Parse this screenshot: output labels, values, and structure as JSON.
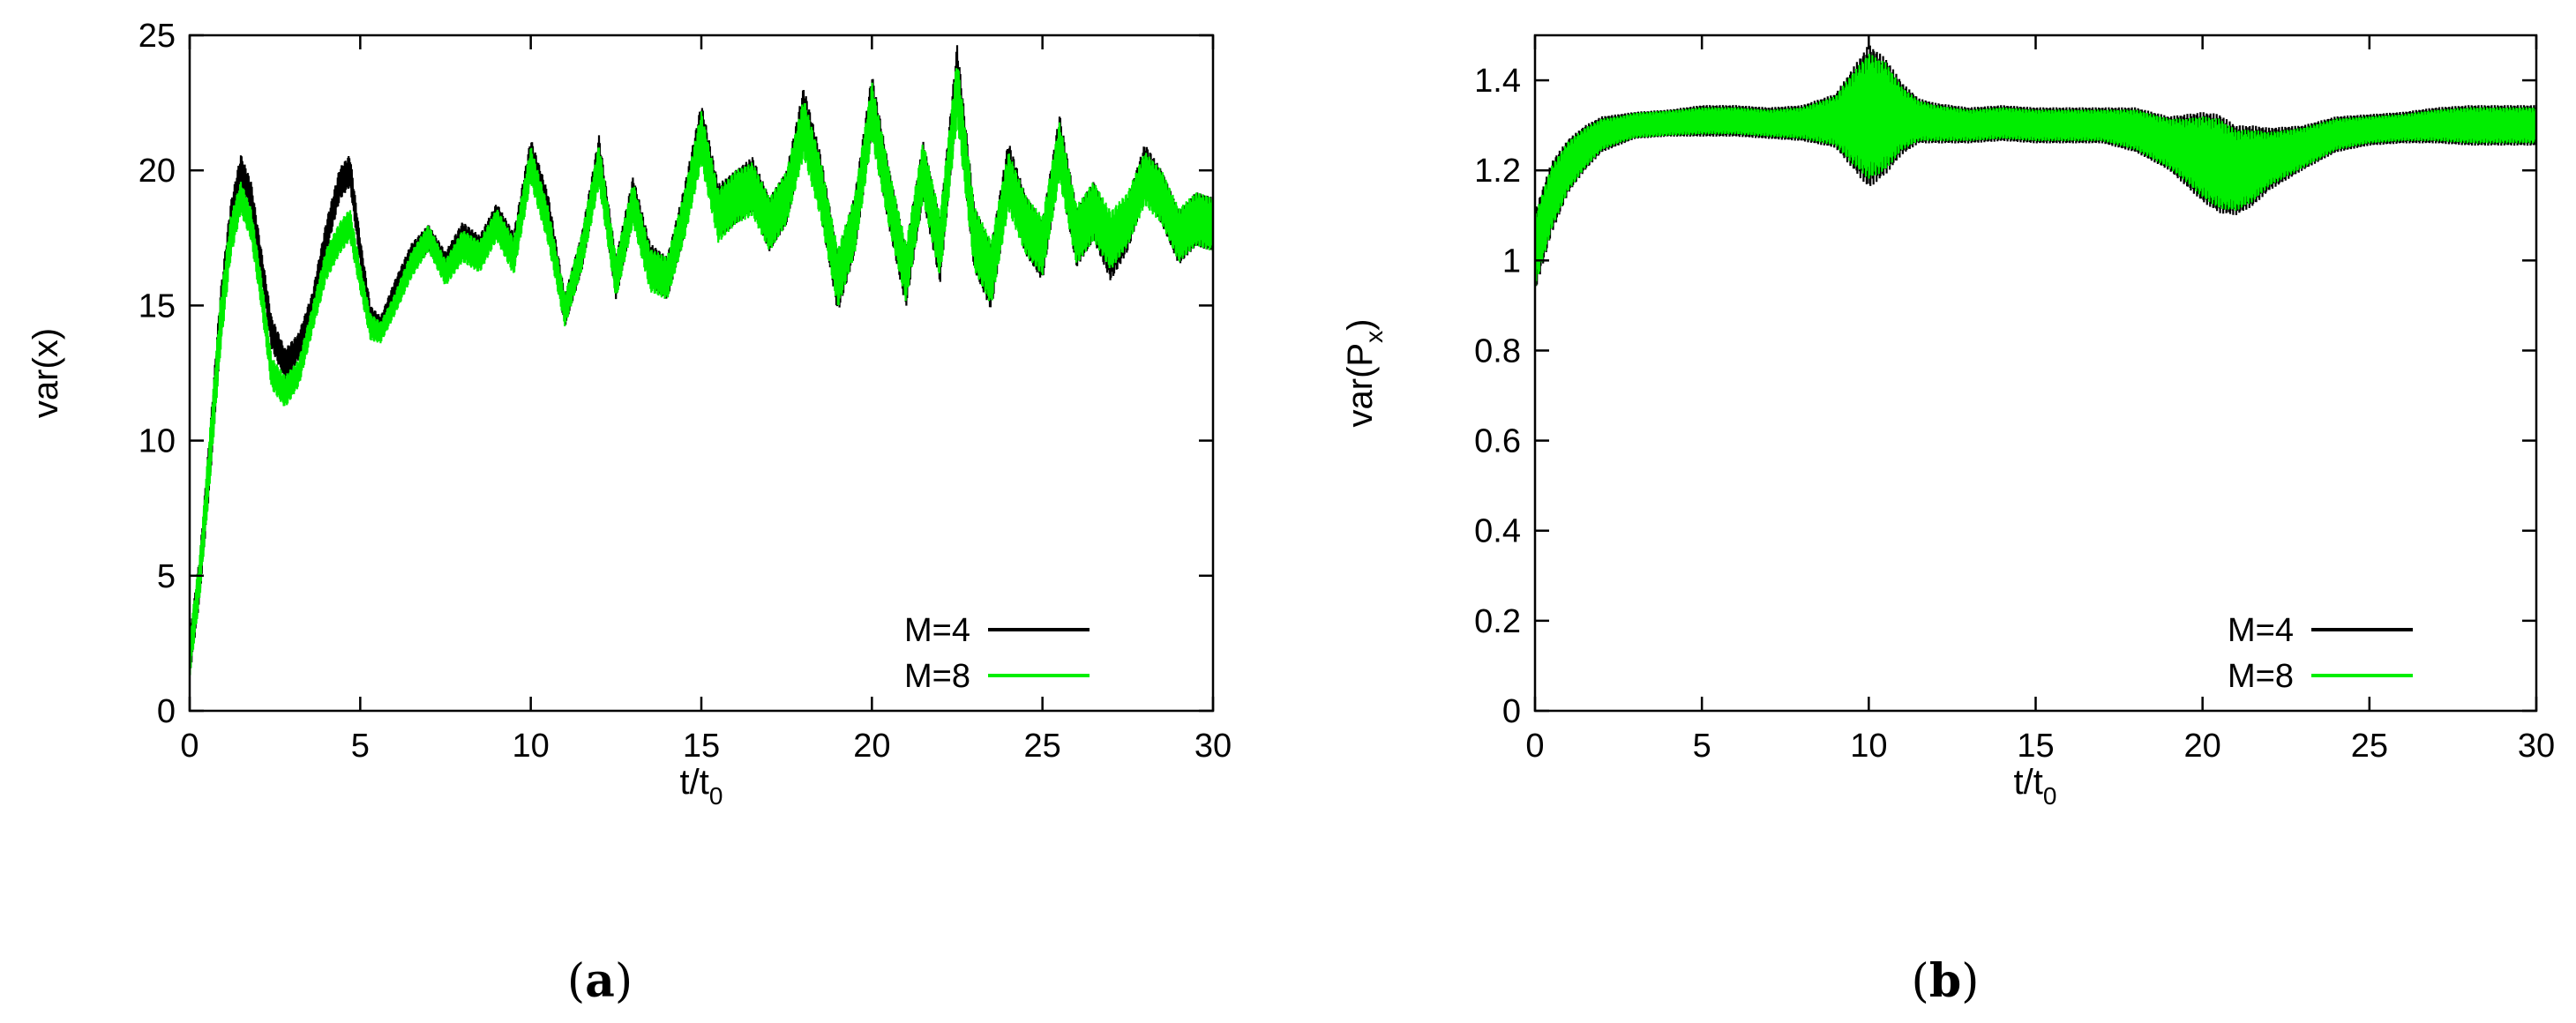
{
  "chart_data": [
    {
      "type": "line",
      "panel_label": {
        "open": "(",
        "letter": "a",
        "close": ")"
      },
      "xlabel": {
        "main": "t/t",
        "sub": "0"
      },
      "ylabel": {
        "main": "var(x)",
        "sub": ""
      },
      "xlim": [
        0,
        30
      ],
      "ylim": [
        0,
        25
      ],
      "xticks": [
        0,
        5,
        10,
        15,
        20,
        25,
        30
      ],
      "yticks": [
        0,
        5,
        10,
        15,
        20,
        25
      ],
      "ytick_labels": [
        "0",
        "5",
        "10",
        "15",
        "20",
        "25"
      ],
      "legend_position": "bottom-right",
      "series": [
        {
          "name": "M=4",
          "color": "#000000",
          "x": [
            0,
            0.3,
            0.6,
            0.9,
            1.2,
            1.5,
            1.8,
            2.1,
            2.4,
            2.8,
            3.2,
            3.6,
            4.0,
            4.4,
            4.7,
            5.0,
            5.3,
            5.6,
            6.0,
            6.5,
            7.0,
            7.5,
            8.0,
            8.5,
            9.0,
            9.5,
            10.0,
            10.5,
            11.0,
            11.5,
            12.0,
            12.5,
            13.0,
            13.5,
            14.0,
            14.5,
            15.0,
            15.5,
            16.0,
            16.5,
            17.0,
            17.5,
            18.0,
            18.5,
            19.0,
            19.5,
            20.0,
            20.5,
            21.0,
            21.5,
            22.0,
            22.5,
            23.0,
            23.5,
            24.0,
            24.5,
            25.0,
            25.5,
            26.0,
            26.5,
            27.0,
            27.5,
            28.0,
            28.5,
            29.0,
            29.5,
            30.0
          ],
          "y": [
            2.0,
            5.0,
            9.5,
            14.5,
            18.0,
            20.0,
            19.0,
            16.5,
            14.0,
            12.8,
            13.5,
            15.0,
            17.5,
            19.5,
            20.0,
            17.0,
            14.5,
            14.2,
            15.5,
            16.8,
            17.5,
            16.5,
            17.5,
            17.0,
            18.2,
            17.0,
            20.5,
            18.5,
            14.8,
            17.0,
            20.5,
            16.0,
            19.0,
            16.5,
            16.0,
            18.5,
            21.5,
            18.5,
            19.0,
            19.5,
            18.0,
            19.0,
            22.0,
            19.5,
            15.8,
            18.0,
            22.5,
            19.0,
            16.0,
            20.0,
            17.0,
            23.5,
            17.5,
            16.0,
            20.0,
            18.0,
            17.0,
            21.0,
            17.5,
            18.5,
            17.0,
            18.0,
            20.0,
            19.0,
            17.5,
            18.2,
            18.0
          ],
          "amp": [
            0.8,
            0.8,
            1.0,
            1.0,
            0.8,
            0.6,
            0.6,
            0.6,
            0.6,
            0.6,
            0.5,
            0.5,
            0.6,
            0.6,
            0.6,
            0.5,
            0.5,
            0.4,
            0.4,
            0.5,
            0.5,
            0.5,
            0.6,
            0.6,
            0.6,
            0.7,
            0.7,
            0.7,
            0.6,
            0.7,
            0.8,
            0.8,
            0.8,
            0.8,
            0.8,
            0.9,
            1.0,
            1.0,
            1.0,
            1.0,
            1.0,
            1.0,
            1.1,
            1.1,
            1.1,
            1.1,
            1.1,
            1.1,
            1.1,
            1.1,
            1.2,
            1.2,
            1.2,
            1.2,
            1.1,
            1.1,
            1.1,
            1.1,
            1.1,
            1.1,
            1.1,
            1.0,
            1.0,
            1.0,
            1.0,
            1.0,
            1.0
          ]
        },
        {
          "name": "M=8",
          "color": "#00ee00",
          "x": [
            0,
            0.3,
            0.6,
            0.9,
            1.2,
            1.5,
            1.8,
            2.1,
            2.4,
            2.8,
            3.2,
            3.6,
            4.0,
            4.4,
            4.7,
            5.0,
            5.3,
            5.6,
            6.0,
            6.5,
            7.0,
            7.5,
            8.0,
            8.5,
            9.0,
            9.5,
            10.0,
            10.5,
            11.0,
            11.5,
            12.0,
            12.5,
            13.0,
            13.5,
            14.0,
            14.5,
            15.0,
            15.5,
            16.0,
            16.5,
            17.0,
            17.5,
            18.0,
            18.5,
            19.0,
            19.5,
            20.0,
            20.5,
            21.0,
            21.5,
            22.0,
            22.5,
            23.0,
            23.5,
            24.0,
            24.5,
            25.0,
            25.5,
            26.0,
            26.5,
            27.0,
            27.5,
            28.0,
            28.5,
            29.0,
            29.5,
            30.0
          ],
          "y": [
            2.0,
            5.0,
            9.5,
            14.2,
            17.5,
            19.0,
            18.0,
            15.5,
            12.5,
            11.8,
            12.5,
            14.5,
            16.5,
            17.5,
            18.0,
            16.0,
            14.2,
            14.0,
            15.0,
            16.5,
            17.5,
            16.2,
            17.2,
            16.8,
            18.0,
            16.8,
            20.2,
            18.0,
            14.8,
            17.0,
            20.2,
            16.0,
            18.8,
            16.3,
            16.0,
            18.3,
            21.2,
            18.3,
            19.0,
            19.3,
            18.0,
            19.0,
            21.6,
            19.3,
            16.0,
            18.0,
            22.2,
            19.0,
            16.2,
            20.0,
            17.2,
            23.0,
            17.5,
            16.2,
            19.6,
            18.0,
            17.2,
            20.7,
            17.6,
            18.5,
            17.4,
            18.2,
            19.7,
            19.0,
            17.6,
            18.2,
            18.0
          ],
          "amp": [
            0.8,
            0.8,
            1.0,
            1.0,
            0.8,
            0.6,
            0.6,
            0.6,
            0.6,
            0.6,
            0.5,
            0.5,
            0.6,
            0.6,
            0.6,
            0.5,
            0.5,
            0.4,
            0.4,
            0.5,
            0.5,
            0.5,
            0.6,
            0.6,
            0.6,
            0.7,
            0.7,
            0.7,
            0.6,
            0.7,
            0.8,
            0.8,
            0.8,
            0.8,
            0.8,
            0.9,
            1.0,
            1.0,
            1.0,
            1.0,
            1.0,
            1.0,
            1.1,
            1.1,
            1.1,
            1.1,
            1.1,
            1.1,
            1.1,
            1.1,
            1.2,
            1.2,
            1.2,
            1.2,
            1.1,
            1.1,
            1.1,
            1.1,
            1.1,
            1.1,
            1.1,
            1.0,
            1.0,
            1.0,
            1.0,
            1.0,
            1.0
          ]
        }
      ]
    },
    {
      "type": "line",
      "panel_label": {
        "open": "(",
        "letter": "b",
        "close": ")"
      },
      "xlabel": {
        "main": "t/t",
        "sub": "0"
      },
      "ylabel": {
        "main": "var(P",
        "sub": "x",
        "close": ")"
      },
      "xlim": [
        0,
        30
      ],
      "ylim": [
        0,
        1.5
      ],
      "xticks": [
        0,
        5,
        10,
        15,
        20,
        25,
        30
      ],
      "yticks": [
        0,
        0.2,
        0.4,
        0.6,
        0.8,
        1.0,
        1.2,
        1.4
      ],
      "ytick_labels": [
        "0",
        "0.2",
        "0.4",
        "0.6",
        "0.8",
        "1",
        "1.2",
        "1.4"
      ],
      "legend_position": "bottom-right",
      "series": [
        {
          "name": "M=4",
          "color": "#000000",
          "x": [
            0,
            0.5,
            1.0,
            1.5,
            2.0,
            2.5,
            3.0,
            4.0,
            5.0,
            6.0,
            7.0,
            8.0,
            9.0,
            9.5,
            10.0,
            10.5,
            11.0,
            11.5,
            12.0,
            13.0,
            14.0,
            15.0,
            16.0,
            17.0,
            18.0,
            19.0,
            19.5,
            20.0,
            20.5,
            21.0,
            21.5,
            22.0,
            23.0,
            24.0,
            25.0,
            26.0,
            27.0,
            28.0,
            29.0,
            30.0
          ],
          "y": [
            1.02,
            1.14,
            1.21,
            1.25,
            1.28,
            1.29,
            1.3,
            1.305,
            1.31,
            1.31,
            1.305,
            1.305,
            1.31,
            1.315,
            1.32,
            1.32,
            1.315,
            1.31,
            1.305,
            1.3,
            1.305,
            1.3,
            1.3,
            1.3,
            1.29,
            1.26,
            1.245,
            1.23,
            1.215,
            1.2,
            1.21,
            1.225,
            1.25,
            1.28,
            1.29,
            1.295,
            1.3,
            1.3,
            1.3,
            1.3
          ],
          "amp": [
            0.09,
            0.08,
            0.06,
            0.05,
            0.04,
            0.035,
            0.03,
            0.03,
            0.035,
            0.035,
            0.035,
            0.04,
            0.06,
            0.11,
            0.16,
            0.13,
            0.08,
            0.05,
            0.045,
            0.04,
            0.04,
            0.04,
            0.04,
            0.04,
            0.05,
            0.06,
            0.08,
            0.1,
            0.11,
            0.1,
            0.09,
            0.07,
            0.05,
            0.04,
            0.035,
            0.035,
            0.04,
            0.045,
            0.045,
            0.045
          ]
        },
        {
          "name": "M=8",
          "color": "#00ee00",
          "x": [
            0,
            0.5,
            1.0,
            1.5,
            2.0,
            2.5,
            3.0,
            4.0,
            5.0,
            6.0,
            7.0,
            8.0,
            9.0,
            9.5,
            10.0,
            10.5,
            11.0,
            11.5,
            12.0,
            13.0,
            14.0,
            15.0,
            16.0,
            17.0,
            18.0,
            19.0,
            19.5,
            20.0,
            20.5,
            21.0,
            21.5,
            22.0,
            23.0,
            24.0,
            25.0,
            26.0,
            27.0,
            28.0,
            29.0,
            30.0
          ],
          "y": [
            1.02,
            1.14,
            1.21,
            1.25,
            1.28,
            1.29,
            1.3,
            1.305,
            1.31,
            1.31,
            1.305,
            1.305,
            1.31,
            1.315,
            1.32,
            1.32,
            1.315,
            1.31,
            1.305,
            1.3,
            1.305,
            1.3,
            1.3,
            1.3,
            1.29,
            1.26,
            1.245,
            1.23,
            1.215,
            1.2,
            1.21,
            1.225,
            1.25,
            1.28,
            1.29,
            1.295,
            1.3,
            1.3,
            1.3,
            1.3
          ],
          "amp": [
            0.08,
            0.07,
            0.055,
            0.045,
            0.035,
            0.03,
            0.028,
            0.028,
            0.03,
            0.03,
            0.03,
            0.035,
            0.055,
            0.1,
            0.14,
            0.12,
            0.07,
            0.045,
            0.04,
            0.035,
            0.035,
            0.035,
            0.035,
            0.035,
            0.045,
            0.055,
            0.07,
            0.09,
            0.1,
            0.09,
            0.08,
            0.06,
            0.045,
            0.035,
            0.03,
            0.03,
            0.035,
            0.04,
            0.04,
            0.04
          ]
        }
      ]
    }
  ]
}
